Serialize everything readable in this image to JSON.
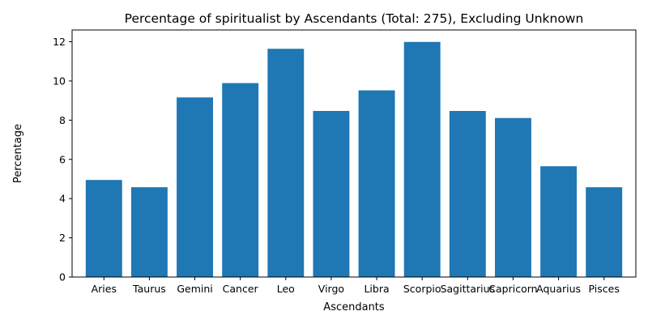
{
  "chart_data": {
    "type": "bar",
    "title": "Percentage of spiritualist by Ascendants (Total: 275), Excluding Unknown",
    "xlabel": "Ascendants",
    "ylabel": "Percentage",
    "categories": [
      "Aries",
      "Taurus",
      "Gemini",
      "Cancer",
      "Leo",
      "Virgo",
      "Libra",
      "Scorpio",
      "Sagittarius",
      "Capricorn",
      "Aquarius",
      "Pisces"
    ],
    "values": [
      4.95,
      4.58,
      9.16,
      9.89,
      11.64,
      8.47,
      9.52,
      11.99,
      8.47,
      8.11,
      5.65,
      4.58
    ],
    "ylim": [
      0,
      12.6
    ],
    "yticks": [
      0,
      2,
      4,
      6,
      8,
      10,
      12
    ],
    "grid": false,
    "bar_color": "#1f77b4"
  }
}
